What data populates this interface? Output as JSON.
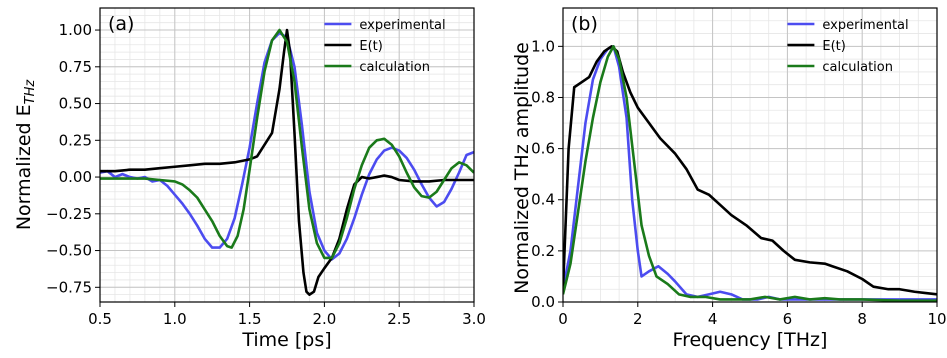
{
  "chart_data": [
    {
      "type": "line",
      "panel_label": "(a)",
      "xlabel": "Time [ps]",
      "ylabel": "Normalized E",
      "ylabel_sub": "THz",
      "xlim": [
        0.5,
        3.0
      ],
      "ylim": [
        -0.85,
        1.15
      ],
      "xticks": [
        "0.5",
        "1.0",
        "1.5",
        "2.0",
        "2.5",
        "3.0"
      ],
      "xtick_values": [
        0.5,
        1.0,
        1.5,
        2.0,
        2.5,
        3.0
      ],
      "yticks": [
        "−0.75",
        "−0.50",
        "−0.25",
        "0.00",
        "0.25",
        "0.50",
        "0.75",
        "1.00"
      ],
      "ytick_values": [
        -0.75,
        -0.5,
        -0.25,
        0,
        0.25,
        0.5,
        0.75,
        1.0
      ],
      "grid": true,
      "legend_position": "top-right",
      "series": [
        {
          "name": "experimental",
          "color": "#4c4cf0",
          "points": [
            [
              0.5,
              0.03
            ],
            [
              0.55,
              0.04
            ],
            [
              0.6,
              0.0
            ],
            [
              0.65,
              0.02
            ],
            [
              0.7,
              0.0
            ],
            [
              0.75,
              -0.01
            ],
            [
              0.8,
              0.0
            ],
            [
              0.85,
              -0.03
            ],
            [
              0.9,
              -0.02
            ],
            [
              0.95,
              -0.06
            ],
            [
              1.0,
              -0.12
            ],
            [
              1.05,
              -0.18
            ],
            [
              1.1,
              -0.25
            ],
            [
              1.15,
              -0.33
            ],
            [
              1.2,
              -0.42
            ],
            [
              1.25,
              -0.48
            ],
            [
              1.3,
              -0.48
            ],
            [
              1.35,
              -0.42
            ],
            [
              1.4,
              -0.28
            ],
            [
              1.45,
              -0.05
            ],
            [
              1.5,
              0.2
            ],
            [
              1.55,
              0.5
            ],
            [
              1.6,
              0.78
            ],
            [
              1.65,
              0.93
            ],
            [
              1.7,
              0.98
            ],
            [
              1.75,
              0.95
            ],
            [
              1.8,
              0.75
            ],
            [
              1.85,
              0.35
            ],
            [
              1.9,
              -0.1
            ],
            [
              1.95,
              -0.38
            ],
            [
              2.0,
              -0.5
            ],
            [
              2.05,
              -0.56
            ],
            [
              2.1,
              -0.52
            ],
            [
              2.15,
              -0.42
            ],
            [
              2.2,
              -0.28
            ],
            [
              2.25,
              -0.12
            ],
            [
              2.3,
              0.02
            ],
            [
              2.35,
              0.12
            ],
            [
              2.4,
              0.18
            ],
            [
              2.45,
              0.2
            ],
            [
              2.5,
              0.18
            ],
            [
              2.55,
              0.13
            ],
            [
              2.6,
              0.05
            ],
            [
              2.65,
              -0.05
            ],
            [
              2.7,
              -0.14
            ],
            [
              2.75,
              -0.2
            ],
            [
              2.8,
              -0.17
            ],
            [
              2.85,
              -0.08
            ],
            [
              2.9,
              0.03
            ],
            [
              2.95,
              0.15
            ],
            [
              3.0,
              0.17
            ]
          ]
        },
        {
          "name": "E(t)",
          "color": "#000000",
          "points": [
            [
              0.5,
              0.04
            ],
            [
              0.6,
              0.04
            ],
            [
              0.7,
              0.05
            ],
            [
              0.8,
              0.05
            ],
            [
              0.9,
              0.06
            ],
            [
              1.0,
              0.07
            ],
            [
              1.1,
              0.08
            ],
            [
              1.2,
              0.09
            ],
            [
              1.3,
              0.09
            ],
            [
              1.4,
              0.1
            ],
            [
              1.5,
              0.12
            ],
            [
              1.55,
              0.14
            ],
            [
              1.6,
              0.22
            ],
            [
              1.65,
              0.3
            ],
            [
              1.7,
              0.6
            ],
            [
              1.73,
              0.85
            ],
            [
              1.75,
              1.0
            ],
            [
              1.77,
              0.85
            ],
            [
              1.8,
              0.3
            ],
            [
              1.83,
              -0.3
            ],
            [
              1.86,
              -0.65
            ],
            [
              1.88,
              -0.78
            ],
            [
              1.9,
              -0.8
            ],
            [
              1.93,
              -0.78
            ],
            [
              1.96,
              -0.68
            ],
            [
              2.0,
              -0.62
            ],
            [
              2.05,
              -0.55
            ],
            [
              2.1,
              -0.42
            ],
            [
              2.15,
              -0.22
            ],
            [
              2.2,
              -0.05
            ],
            [
              2.25,
              0.0
            ],
            [
              2.3,
              -0.01
            ],
            [
              2.35,
              0.0
            ],
            [
              2.4,
              0.01
            ],
            [
              2.45,
              0.0
            ],
            [
              2.5,
              -0.02
            ],
            [
              2.6,
              -0.03
            ],
            [
              2.7,
              -0.03
            ],
            [
              2.8,
              -0.02
            ],
            [
              2.9,
              -0.02
            ],
            [
              3.0,
              -0.02
            ]
          ]
        },
        {
          "name": "calculation",
          "color": "#1a7a1a",
          "points": [
            [
              0.5,
              -0.01
            ],
            [
              0.6,
              -0.01
            ],
            [
              0.7,
              -0.01
            ],
            [
              0.8,
              -0.01
            ],
            [
              0.9,
              -0.02
            ],
            [
              1.0,
              -0.03
            ],
            [
              1.05,
              -0.05
            ],
            [
              1.1,
              -0.09
            ],
            [
              1.15,
              -0.14
            ],
            [
              1.2,
              -0.22
            ],
            [
              1.25,
              -0.3
            ],
            [
              1.3,
              -0.4
            ],
            [
              1.35,
              -0.47
            ],
            [
              1.38,
              -0.48
            ],
            [
              1.42,
              -0.4
            ],
            [
              1.46,
              -0.22
            ],
            [
              1.5,
              0.05
            ],
            [
              1.55,
              0.4
            ],
            [
              1.6,
              0.72
            ],
            [
              1.65,
              0.93
            ],
            [
              1.7,
              1.0
            ],
            [
              1.75,
              0.92
            ],
            [
              1.8,
              0.65
            ],
            [
              1.85,
              0.2
            ],
            [
              1.9,
              -0.22
            ],
            [
              1.95,
              -0.45
            ],
            [
              2.0,
              -0.55
            ],
            [
              2.05,
              -0.55
            ],
            [
              2.1,
              -0.45
            ],
            [
              2.15,
              -0.28
            ],
            [
              2.2,
              -0.08
            ],
            [
              2.25,
              0.08
            ],
            [
              2.3,
              0.2
            ],
            [
              2.35,
              0.25
            ],
            [
              2.4,
              0.26
            ],
            [
              2.45,
              0.22
            ],
            [
              2.5,
              0.14
            ],
            [
              2.55,
              0.03
            ],
            [
              2.6,
              -0.07
            ],
            [
              2.65,
              -0.13
            ],
            [
              2.7,
              -0.14
            ],
            [
              2.75,
              -0.1
            ],
            [
              2.8,
              -0.02
            ],
            [
              2.85,
              0.06
            ],
            [
              2.9,
              0.1
            ],
            [
              2.95,
              0.08
            ],
            [
              3.0,
              0.03
            ]
          ]
        }
      ]
    },
    {
      "type": "line",
      "panel_label": "(b)",
      "xlabel": "Frequency [THz]",
      "ylabel": "Normalized THz amplitude",
      "xlim": [
        0,
        10
      ],
      "ylim": [
        0,
        1.15
      ],
      "xticks": [
        "0",
        "2",
        "4",
        "6",
        "8",
        "10"
      ],
      "xtick_values": [
        0,
        2,
        4,
        6,
        8,
        10
      ],
      "yticks": [
        "0.0",
        "0.2",
        "0.4",
        "0.6",
        "0.8",
        "1.0"
      ],
      "ytick_values": [
        0,
        0.2,
        0.4,
        0.6,
        0.8,
        1.0
      ],
      "grid": true,
      "legend_position": "top-right",
      "series": [
        {
          "name": "experimental",
          "color": "#4c4cf0",
          "points": [
            [
              0,
              0.05
            ],
            [
              0.2,
              0.2
            ],
            [
              0.4,
              0.45
            ],
            [
              0.6,
              0.7
            ],
            [
              0.8,
              0.87
            ],
            [
              1.0,
              0.95
            ],
            [
              1.2,
              0.99
            ],
            [
              1.35,
              1.0
            ],
            [
              1.5,
              0.92
            ],
            [
              1.7,
              0.72
            ],
            [
              1.85,
              0.4
            ],
            [
              2.0,
              0.2
            ],
            [
              2.1,
              0.1
            ],
            [
              2.3,
              0.12
            ],
            [
              2.55,
              0.14
            ],
            [
              2.8,
              0.11
            ],
            [
              3.0,
              0.08
            ],
            [
              3.3,
              0.03
            ],
            [
              3.6,
              0.02
            ],
            [
              3.9,
              0.03
            ],
            [
              4.2,
              0.04
            ],
            [
              4.5,
              0.03
            ],
            [
              4.8,
              0.01
            ],
            [
              5.2,
              0.01
            ],
            [
              5.5,
              0.02
            ],
            [
              5.8,
              0.01
            ],
            [
              6.2,
              0.01
            ],
            [
              6.6,
              0.01
            ],
            [
              7.0,
              0.01
            ],
            [
              8.0,
              0.01
            ],
            [
              9.0,
              0.01
            ],
            [
              10.0,
              0.01
            ]
          ]
        },
        {
          "name": "E(t)",
          "color": "#000000",
          "points": [
            [
              0,
              0.05
            ],
            [
              0.15,
              0.6
            ],
            [
              0.3,
              0.84
            ],
            [
              0.5,
              0.86
            ],
            [
              0.7,
              0.88
            ],
            [
              0.9,
              0.94
            ],
            [
              1.1,
              0.98
            ],
            [
              1.3,
              1.0
            ],
            [
              1.45,
              0.98
            ],
            [
              1.6,
              0.9
            ],
            [
              1.8,
              0.82
            ],
            [
              2.0,
              0.76
            ],
            [
              2.3,
              0.7
            ],
            [
              2.6,
              0.64
            ],
            [
              3.0,
              0.58
            ],
            [
              3.3,
              0.52
            ],
            [
              3.6,
              0.44
            ],
            [
              3.9,
              0.42
            ],
            [
              4.2,
              0.38
            ],
            [
              4.5,
              0.34
            ],
            [
              4.9,
              0.3
            ],
            [
              5.3,
              0.25
            ],
            [
              5.6,
              0.24
            ],
            [
              5.9,
              0.2
            ],
            [
              6.2,
              0.165
            ],
            [
              6.6,
              0.155
            ],
            [
              7.0,
              0.15
            ],
            [
              7.2,
              0.14
            ],
            [
              7.6,
              0.12
            ],
            [
              8.0,
              0.09
            ],
            [
              8.3,
              0.06
            ],
            [
              8.7,
              0.05
            ],
            [
              9.0,
              0.05
            ],
            [
              9.4,
              0.04
            ],
            [
              9.7,
              0.035
            ],
            [
              10.0,
              0.03
            ]
          ]
        },
        {
          "name": "calculation",
          "color": "#1a7a1a",
          "points": [
            [
              0,
              0.03
            ],
            [
              0.2,
              0.15
            ],
            [
              0.4,
              0.35
            ],
            [
              0.6,
              0.55
            ],
            [
              0.8,
              0.72
            ],
            [
              1.0,
              0.86
            ],
            [
              1.2,
              0.96
            ],
            [
              1.35,
              1.0
            ],
            [
              1.5,
              0.95
            ],
            [
              1.7,
              0.8
            ],
            [
              1.9,
              0.55
            ],
            [
              2.1,
              0.3
            ],
            [
              2.3,
              0.18
            ],
            [
              2.5,
              0.1
            ],
            [
              2.8,
              0.07
            ],
            [
              3.1,
              0.03
            ],
            [
              3.4,
              0.02
            ],
            [
              3.8,
              0.02
            ],
            [
              4.2,
              0.01
            ],
            [
              4.6,
              0.01
            ],
            [
              5.0,
              0.01
            ],
            [
              5.4,
              0.02
            ],
            [
              5.8,
              0.01
            ],
            [
              6.2,
              0.02
            ],
            [
              6.6,
              0.01
            ],
            [
              7.0,
              0.015
            ],
            [
              7.4,
              0.01
            ],
            [
              8.0,
              0.01
            ],
            [
              9.0,
              0.005
            ],
            [
              10.0,
              0.005
            ]
          ]
        }
      ]
    }
  ]
}
